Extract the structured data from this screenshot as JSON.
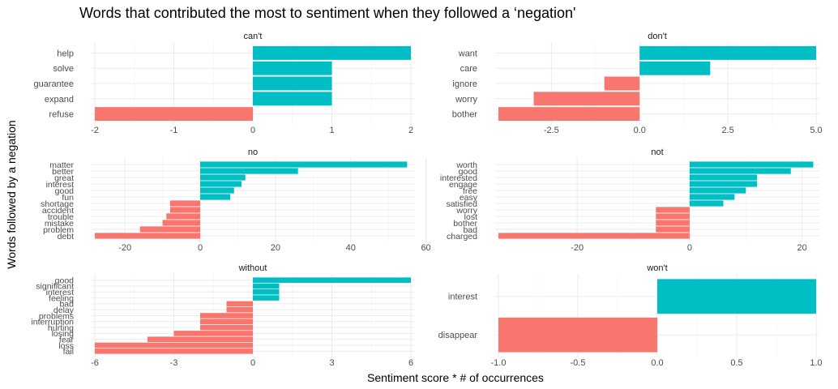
{
  "title": "Words that contributed the most to sentiment when they followed a ‘negation'",
  "ylabel": "Words followed by a negation",
  "xlabel": "Sentiment score * # of occurrences",
  "colors": {
    "positive": "#00BFC4",
    "negative": "#F8766D",
    "grid": "#EBEBEB",
    "tick": "#4D4D4D"
  },
  "chart_data": [
    {
      "type": "bar",
      "orientation": "horizontal",
      "facet": "can't",
      "categories": [
        "refuse",
        "expand",
        "guarantee",
        "solve",
        "help"
      ],
      "values": [
        -2,
        1,
        1,
        1,
        2
      ],
      "xlim": [
        -2.0,
        2.0
      ],
      "xticks": [
        -2,
        -1,
        0,
        1,
        2
      ],
      "xtick_labels": [
        "-2",
        "-1",
        "0",
        "1",
        "2"
      ],
      "grid": true
    },
    {
      "type": "bar",
      "orientation": "horizontal",
      "facet": "don't",
      "categories": [
        "bother",
        "worry",
        "ignore",
        "care",
        "want"
      ],
      "values": [
        -4,
        -3,
        -1,
        2,
        5
      ],
      "xlim": [
        -4.0,
        5.0
      ],
      "xticks": [
        -2.5,
        0,
        2.5,
        5
      ],
      "xtick_labels": [
        "-2.5",
        "0.0",
        "2.5",
        "5.0"
      ],
      "grid": true
    },
    {
      "type": "bar",
      "orientation": "horizontal",
      "facet": "no",
      "categories": [
        "debt",
        "problem",
        "mistake",
        "trouble",
        "accident",
        "shortage",
        "fun",
        "good",
        "interest",
        "great",
        "better",
        "matter"
      ],
      "values": [
        -28,
        -16,
        -10,
        -9,
        -8,
        -8,
        8,
        9,
        11,
        12,
        26,
        55
      ],
      "xlim": [
        -28,
        56
      ],
      "xticks": [
        -20,
        0,
        20,
        40,
        60
      ],
      "xtick_labels": [
        "-20",
        "0",
        "20",
        "40",
        "60"
      ],
      "grid": true
    },
    {
      "type": "bar",
      "orientation": "horizontal",
      "facet": "not",
      "categories": [
        "charged",
        "bad",
        "bother",
        "lost",
        "worry",
        "satisfied",
        "easy",
        "free",
        "engage",
        "interested",
        "good",
        "worth"
      ],
      "values": [
        -34,
        -6,
        -6,
        -6,
        -6,
        6,
        8,
        10,
        12,
        12,
        18,
        22
      ],
      "xlim": [
        -34,
        22.5
      ],
      "xticks": [
        -20,
        0,
        20
      ],
      "xtick_labels": [
        "-20",
        "0",
        "20"
      ],
      "grid": true
    },
    {
      "type": "bar",
      "orientation": "horizontal",
      "facet": "without",
      "categories": [
        "fail",
        "loss",
        "fear",
        "losing",
        "hurting",
        "interruption",
        "problems",
        "delay",
        "bad",
        "feeling",
        "interest",
        "significant",
        "good"
      ],
      "values": [
        -6,
        -6,
        -4,
        -3,
        -2,
        -2,
        -2,
        -1,
        -1,
        1,
        1,
        1,
        6
      ],
      "xlim": [
        -6,
        6
      ],
      "xticks": [
        -6,
        -3,
        0,
        3,
        6
      ],
      "xtick_labels": [
        "-6",
        "-3",
        "0",
        "3",
        "6"
      ],
      "grid": true
    },
    {
      "type": "bar",
      "orientation": "horizontal",
      "facet": "won't",
      "categories": [
        "disappear",
        "interest"
      ],
      "values": [
        -1,
        1
      ],
      "xlim": [
        -1.0,
        1.0
      ],
      "xticks": [
        -1,
        -0.5,
        0,
        0.5,
        1
      ],
      "xtick_labels": [
        "-1.0",
        "-0.5",
        "0.0",
        "0.5",
        "1.0"
      ],
      "grid": true
    }
  ]
}
